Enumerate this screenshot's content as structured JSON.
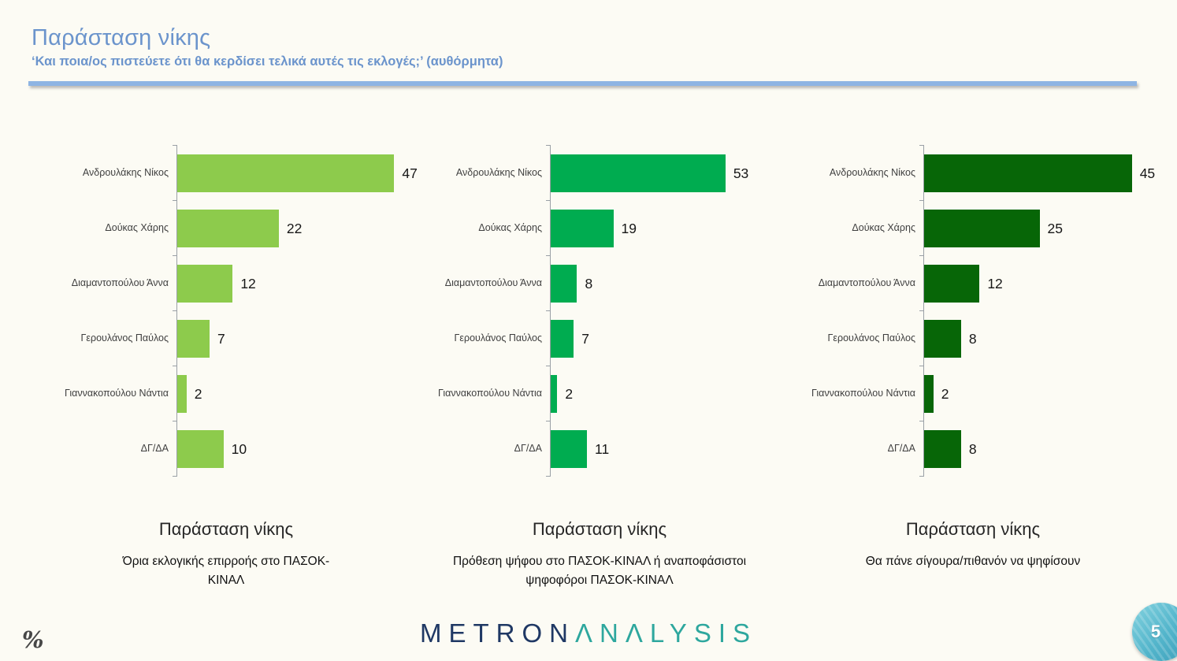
{
  "page": {
    "title": "Παράσταση νίκης",
    "subtitle": "‘Και ποια/ος πιστεύετε ότι θα κερδίσει τελικά αυτές τις εκλογές;’ (αυθόρμητα)",
    "percent_sign": "%",
    "page_number": "5",
    "logo": {
      "part1": "METRON",
      "part2": "ΛNΛLYSIS"
    }
  },
  "colors": {
    "title_blue": "#6B94CC",
    "divider_blue": "#8EB4E3",
    "bar_light_green": "#8DCB4C",
    "bar_medium_green": "#00AC50",
    "bar_dark_green": "#076607",
    "logo_navy": "#1F3864",
    "logo_teal": "#2EA79E",
    "page_circle_teal": "#53B5CB"
  },
  "chart_data": [
    {
      "type": "bar",
      "orientation": "horizontal",
      "title": "Παράσταση νίκης",
      "subtitle": "Όρια εκλογικής επιρροής στο ΠΑΣΟΚ-ΚΙΝΑΛ",
      "categories": [
        "Ανδρουλάκης Νίκος",
        "Δούκας Χάρης",
        "Διαμαντοπούλου Άννα",
        "Γερουλάνος Παύλος",
        "Γιαννακοπούλου Νάντια",
        "ΔΓ/ΔΑ"
      ],
      "values": [
        47,
        22,
        12,
        7,
        2,
        10
      ],
      "axis_max": 50,
      "bar_color": "#8DCB4C",
      "grid": false,
      "data_labels": true
    },
    {
      "type": "bar",
      "orientation": "horizontal",
      "title": "Παράσταση νίκης",
      "subtitle": "Πρόθεση ψήφου στο ΠΑΣΟΚ-ΚΙΝΑΛ ή αναποφάσιστοι ψηφοφόροι ΠΑΣΟΚ-ΚΙΝΑΛ",
      "categories": [
        "Ανδρουλάκης Νίκος",
        "Δούκας Χάρης",
        "Διαμαντοπούλου Άννα",
        "Γερουλάνος Παύλος",
        "Γιαννακοπούλου Νάντια",
        "ΔΓ/ΔΑ"
      ],
      "values": [
        53,
        19,
        8,
        7,
        2,
        11
      ],
      "axis_max": 70,
      "bar_color": "#00AC50",
      "grid": false,
      "data_labels": true
    },
    {
      "type": "bar",
      "orientation": "horizontal",
      "title": "Παράσταση νίκης",
      "subtitle": "Θα πάνε σίγουρα/πιθανόν να ψηφίσουν",
      "categories": [
        "Ανδρουλάκης Νίκος",
        "Δούκας Χάρης",
        "Διαμαντοπούλου Άννα",
        "Γερουλάνος Παύλος",
        "Γιαννακοπούλου Νάντια",
        "ΔΓ/ΔΑ"
      ],
      "values": [
        45,
        25,
        12,
        8,
        2,
        8
      ],
      "axis_max": 50,
      "bar_color": "#076607",
      "grid": false,
      "data_labels": true
    }
  ]
}
